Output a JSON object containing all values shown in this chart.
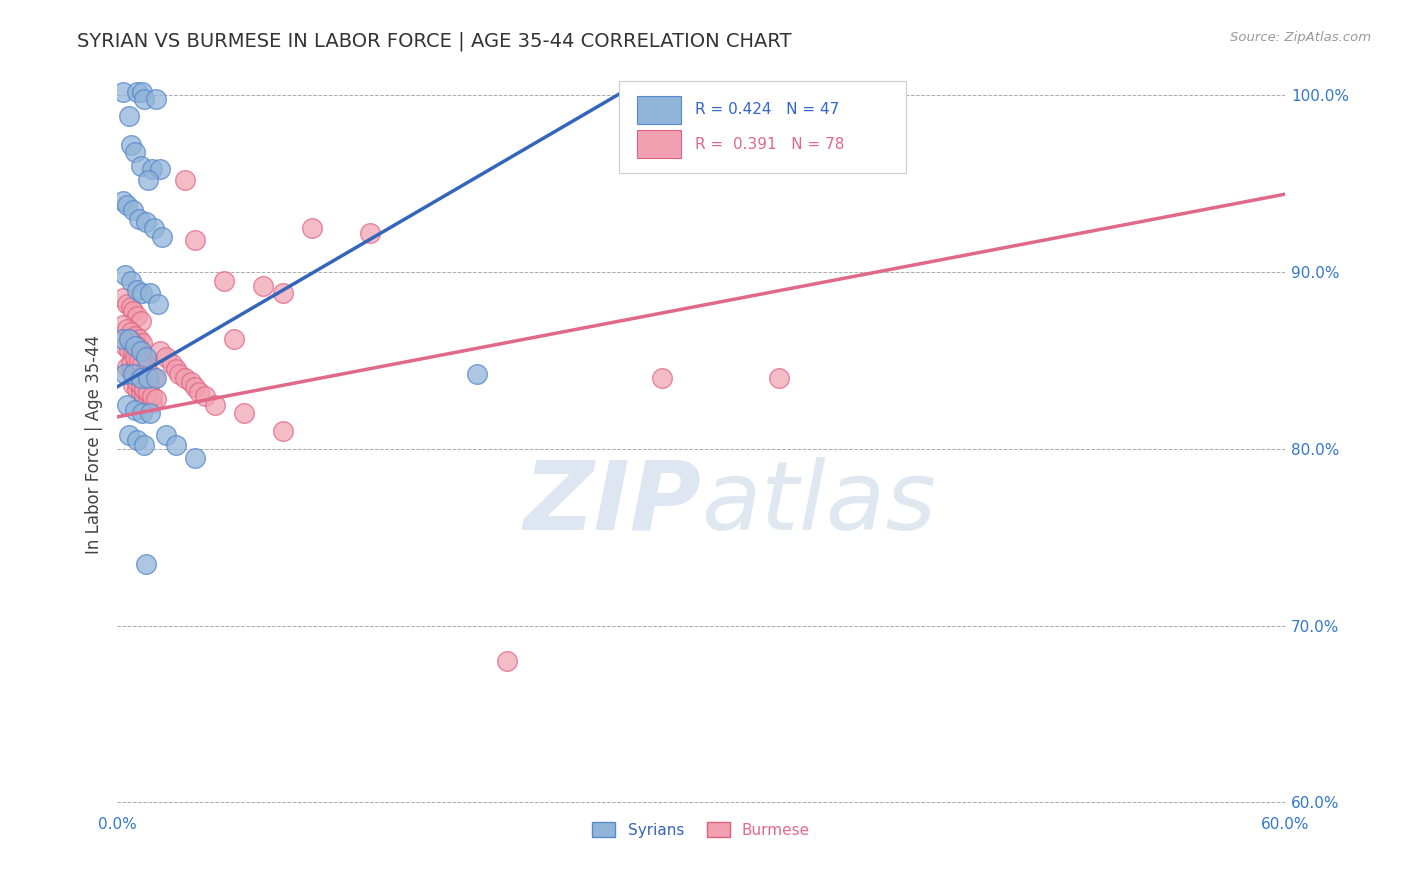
{
  "title": "SYRIAN VS BURMESE IN LABOR FORCE | AGE 35-44 CORRELATION CHART",
  "source": "Source: ZipAtlas.com",
  "ylabel": "In Labor Force | Age 35-44",
  "xlim": [
    0.0,
    0.6
  ],
  "ylim": [
    0.595,
    1.01
  ],
  "xticks": [
    0.0,
    0.1,
    0.2,
    0.3,
    0.4,
    0.5,
    0.6
  ],
  "xtick_labels": [
    "0.0%",
    "",
    "",
    "",
    "",
    "",
    "60.0%"
  ],
  "yticks": [
    0.6,
    0.7,
    0.8,
    0.9,
    1.0
  ],
  "ytick_labels": [
    "60.0%",
    "70.0%",
    "80.0%",
    "90.0%",
    "100.0%"
  ],
  "blue_R": 0.424,
  "blue_N": 47,
  "pink_R": 0.391,
  "pink_N": 78,
  "blue_color": "#92B4D8",
  "pink_color": "#F0A0B0",
  "blue_edge_color": "#5588CC",
  "pink_edge_color": "#E06080",
  "blue_line_color": "#3366BB",
  "pink_line_color": "#E06888",
  "legend_label_blue": "Syrians",
  "legend_label_pink": "Burmese",
  "title_fontsize": 14,
  "axis_label_fontsize": 12,
  "tick_fontsize": 11,
  "blue_line_x0": 0.0,
  "blue_line_y0": 0.835,
  "blue_line_x1": 0.26,
  "blue_line_y1": 1.002,
  "pink_line_x0": 0.0,
  "pink_line_y0": 0.818,
  "pink_line_x1": 0.6,
  "pink_line_y1": 0.944,
  "blue_x": [
    0.003,
    0.01,
    0.013,
    0.014,
    0.02,
    0.006,
    0.007,
    0.009,
    0.012,
    0.018,
    0.022,
    0.016,
    0.003,
    0.005,
    0.008,
    0.011,
    0.015,
    0.019,
    0.023,
    0.004,
    0.007,
    0.01,
    0.013,
    0.017,
    0.021,
    0.003,
    0.006,
    0.009,
    0.012,
    0.015,
    0.004,
    0.008,
    0.012,
    0.016,
    0.02,
    0.005,
    0.009,
    0.013,
    0.017,
    0.006,
    0.01,
    0.014,
    0.185,
    0.025,
    0.03,
    0.04,
    0.015
  ],
  "blue_y": [
    1.002,
    1.002,
    1.002,
    0.998,
    0.998,
    0.988,
    0.972,
    0.968,
    0.96,
    0.958,
    0.958,
    0.952,
    0.94,
    0.938,
    0.935,
    0.93,
    0.928,
    0.925,
    0.92,
    0.898,
    0.895,
    0.89,
    0.888,
    0.888,
    0.882,
    0.862,
    0.862,
    0.858,
    0.855,
    0.852,
    0.842,
    0.842,
    0.84,
    0.84,
    0.84,
    0.825,
    0.822,
    0.82,
    0.82,
    0.808,
    0.805,
    0.802,
    0.842,
    0.808,
    0.802,
    0.795,
    0.735
  ],
  "pink_x": [
    0.003,
    0.005,
    0.007,
    0.008,
    0.01,
    0.012,
    0.003,
    0.005,
    0.007,
    0.009,
    0.011,
    0.013,
    0.004,
    0.006,
    0.008,
    0.01,
    0.012,
    0.014,
    0.005,
    0.007,
    0.009,
    0.011,
    0.013,
    0.015,
    0.006,
    0.008,
    0.01,
    0.012,
    0.014,
    0.016,
    0.007,
    0.009,
    0.011,
    0.013,
    0.015,
    0.017,
    0.008,
    0.01,
    0.012,
    0.014,
    0.016,
    0.018,
    0.009,
    0.011,
    0.013,
    0.015,
    0.017,
    0.019,
    0.01,
    0.012,
    0.014,
    0.016,
    0.018,
    0.02,
    0.022,
    0.025,
    0.028,
    0.03,
    0.032,
    0.035,
    0.038,
    0.04,
    0.042,
    0.045,
    0.05,
    0.06,
    0.075,
    0.085,
    0.1,
    0.13,
    0.28,
    0.34,
    0.2,
    0.035,
    0.04,
    0.055,
    0.065,
    0.085
  ],
  "pink_y": [
    0.885,
    0.882,
    0.88,
    0.878,
    0.875,
    0.872,
    0.87,
    0.868,
    0.866,
    0.864,
    0.862,
    0.86,
    0.858,
    0.856,
    0.854,
    0.852,
    0.85,
    0.848,
    0.846,
    0.844,
    0.842,
    0.84,
    0.838,
    0.836,
    0.862,
    0.86,
    0.858,
    0.855,
    0.852,
    0.85,
    0.848,
    0.846,
    0.844,
    0.842,
    0.84,
    0.838,
    0.836,
    0.834,
    0.832,
    0.83,
    0.828,
    0.826,
    0.852,
    0.85,
    0.848,
    0.845,
    0.842,
    0.84,
    0.838,
    0.836,
    0.834,
    0.832,
    0.83,
    0.828,
    0.855,
    0.852,
    0.848,
    0.845,
    0.842,
    0.84,
    0.838,
    0.835,
    0.832,
    0.83,
    0.825,
    0.862,
    0.892,
    0.888,
    0.925,
    0.922,
    0.84,
    0.84,
    0.68,
    0.952,
    0.918,
    0.895,
    0.82,
    0.81
  ]
}
